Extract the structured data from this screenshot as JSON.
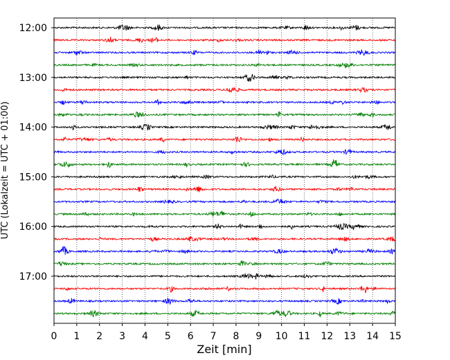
{
  "chart_data": {
    "type": "line",
    "subtype": "helicorder",
    "title": "",
    "xlabel": "Zeit  [min]",
    "ylabel": "UTC (Lokalzeit = UTC + 01:00)",
    "xlim": [
      0,
      15
    ],
    "x_ticks": [
      "0",
      "1",
      "2",
      "3",
      "4",
      "5",
      "6",
      "7",
      "8",
      "9",
      "10",
      "11",
      "12",
      "13",
      "14",
      "15"
    ],
    "y_tick_labels": [
      "12:00",
      "13:00",
      "14:00",
      "15:00",
      "16:00",
      "17:00"
    ],
    "trace_minutes": 15,
    "traces_per_tick": 4,
    "grid": {
      "x": true,
      "style": "dotted"
    },
    "colors_cycle": [
      "#000000",
      "#ff0000",
      "#0000ff",
      "#007f00"
    ],
    "rows": [
      {
        "start": "12:00"
      },
      {
        "start": "12:15"
      },
      {
        "start": "12:30"
      },
      {
        "start": "12:45"
      },
      {
        "start": "13:00"
      },
      {
        "start": "13:15"
      },
      {
        "start": "13:30"
      },
      {
        "start": "13:45"
      },
      {
        "start": "14:00"
      },
      {
        "start": "14:15"
      },
      {
        "start": "14:30"
      },
      {
        "start": "14:45"
      },
      {
        "start": "15:00"
      },
      {
        "start": "15:15"
      },
      {
        "start": "15:30"
      },
      {
        "start": "15:45"
      },
      {
        "start": "16:00"
      },
      {
        "start": "16:15"
      },
      {
        "start": "16:30"
      },
      {
        "start": "16:45"
      },
      {
        "start": "17:00"
      },
      {
        "start": "17:15"
      },
      {
        "start": "17:30"
      },
      {
        "start": "17:45"
      }
    ]
  }
}
